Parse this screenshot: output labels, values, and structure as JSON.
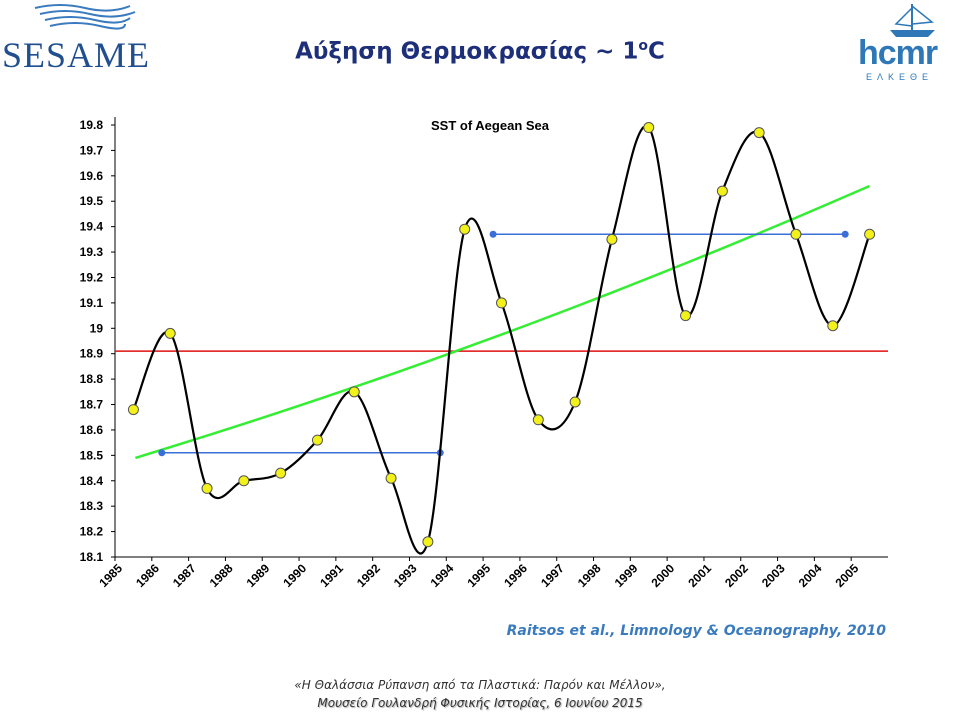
{
  "logos": {
    "left_text": "SESAME",
    "right_text": "hcmr",
    "right_sub": "ΕΛΚΕΘΕ"
  },
  "slide": {
    "title_main": "Αύξηση Θερμοκρασίας ~ 1",
    "title_sup": "ο",
    "title_unit": "C",
    "citation": "Raitsos et al., Limnology & Oceanography, 2010",
    "footer_line1": "«Η Θαλάσσια Ρύπανση από τα Πλαστικά: Παρόν και Μέλλον»,",
    "footer_line2": "Μουσείο Γουλανδρή Φυσικής Ιστορίας, 6 Ιουνίου 2015"
  },
  "colors": {
    "title": "#1e2f7a",
    "citation": "#3a7abf",
    "point_fill": "#f2f21a",
    "trend": "#33ee33",
    "mean": "#e01010",
    "period_mean": "#3a6fd8"
  },
  "chart_data": {
    "type": "line",
    "title": "SST of Aegean Sea",
    "xlabel": "",
    "ylabel": "",
    "categories": [
      "1985",
      "1986",
      "1987",
      "1988",
      "1989",
      "1990",
      "1991",
      "1992",
      "1993",
      "1994",
      "1995",
      "1996",
      "1997",
      "1998",
      "1999",
      "2000",
      "2001",
      "2002",
      "2003",
      "2004",
      "2005"
    ],
    "yticks": [
      "18.1",
      "18.2",
      "18.3",
      "18.4",
      "18.5",
      "18.6",
      "18.7",
      "18.8",
      "18.9",
      "19",
      "19.1",
      "19.2",
      "19.3",
      "19.4",
      "19.5",
      "19.6",
      "19.7",
      "19.8"
    ],
    "ylim": [
      18.1,
      19.8
    ],
    "grid": false,
    "legend": "none",
    "series": [
      {
        "type": "line-smooth",
        "values": [
          18.68,
          18.98,
          18.37,
          18.4,
          18.43,
          18.56,
          18.75,
          18.41,
          18.16,
          19.39,
          19.1,
          18.64,
          18.71,
          19.35,
          19.79,
          19.05,
          19.54,
          19.77,
          19.37,
          19.01,
          19.37
        ]
      }
    ],
    "reference_lines": [
      {
        "kind": "mean",
        "y": 18.91
      },
      {
        "kind": "trend",
        "y_start": 18.49,
        "y_end": 19.56
      },
      {
        "kind": "period-mean-1",
        "y": 18.51,
        "from": "1986",
        "to": "1994"
      },
      {
        "kind": "period-mean-2",
        "y": 19.37,
        "from": "1995",
        "to": "2005"
      }
    ]
  }
}
